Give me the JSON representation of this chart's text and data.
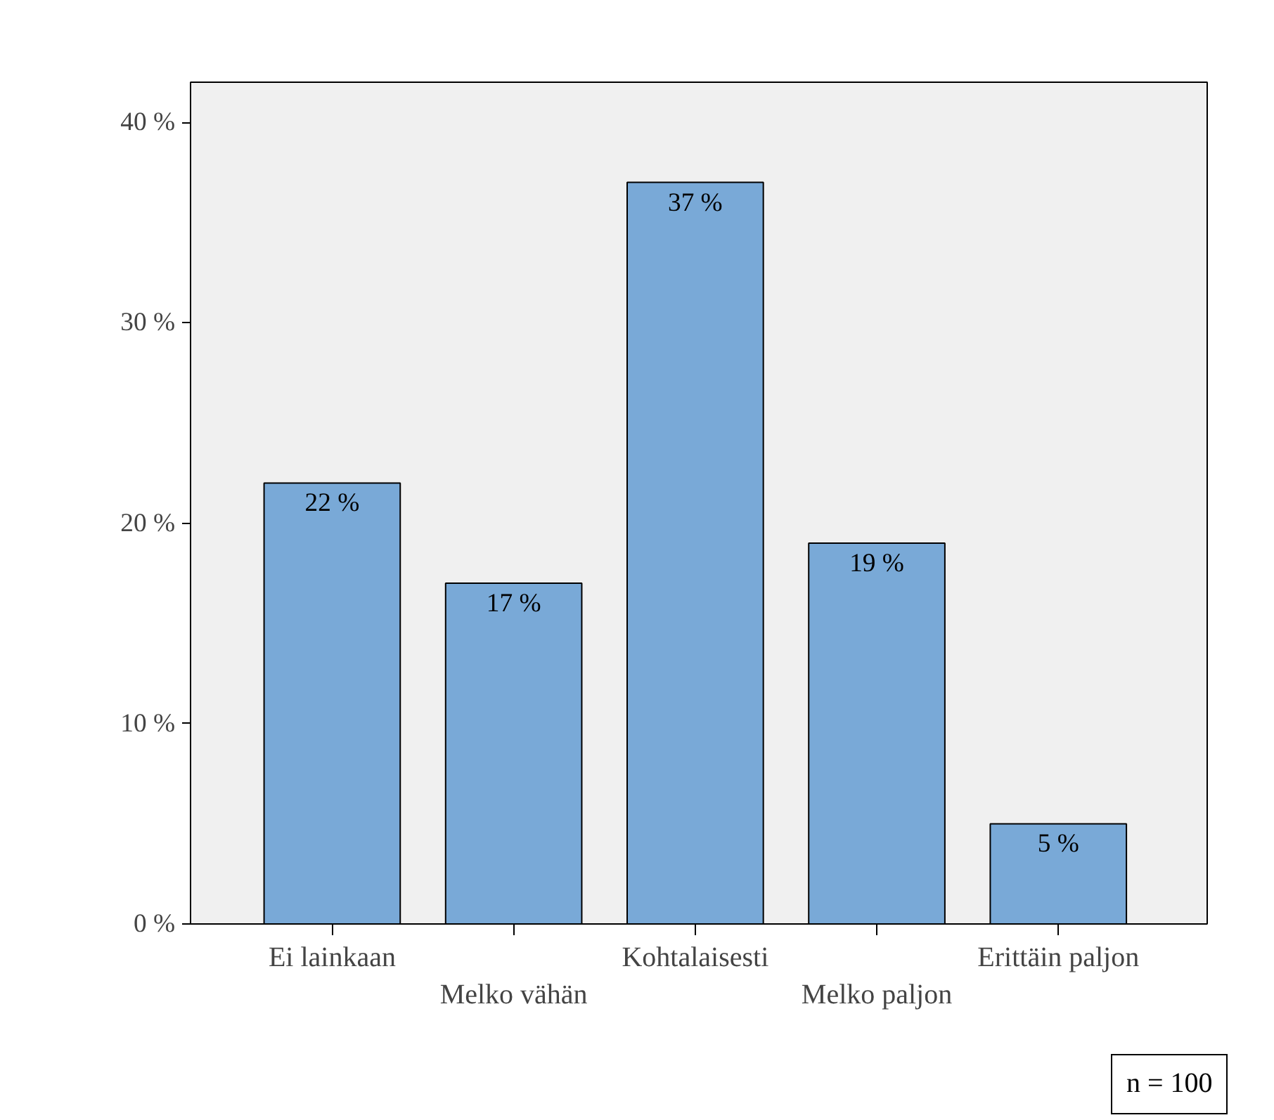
{
  "chart_data": {
    "type": "bar",
    "categories": [
      "Ei lainkaan",
      "Melko vähän",
      "Kohtalaisesti",
      "Melko paljon",
      "Erittäin paljon"
    ],
    "values": [
      22,
      17,
      37,
      19,
      5
    ],
    "color": "#79a9d7",
    "ylim": [
      0,
      42
    ],
    "yticks": [
      {
        "value": 0,
        "label": "0 %"
      },
      {
        "value": 10,
        "label": "10 %"
      },
      {
        "value": 20,
        "label": "20 %"
      },
      {
        "value": 30,
        "label": "30 %"
      },
      {
        "value": 40,
        "label": "40 %"
      }
    ],
    "value_labels": [
      "22 %",
      "17 %",
      "37 %",
      "19 %",
      "5 %"
    ],
    "annotations": [
      "n = 100"
    ],
    "grid": false
  }
}
